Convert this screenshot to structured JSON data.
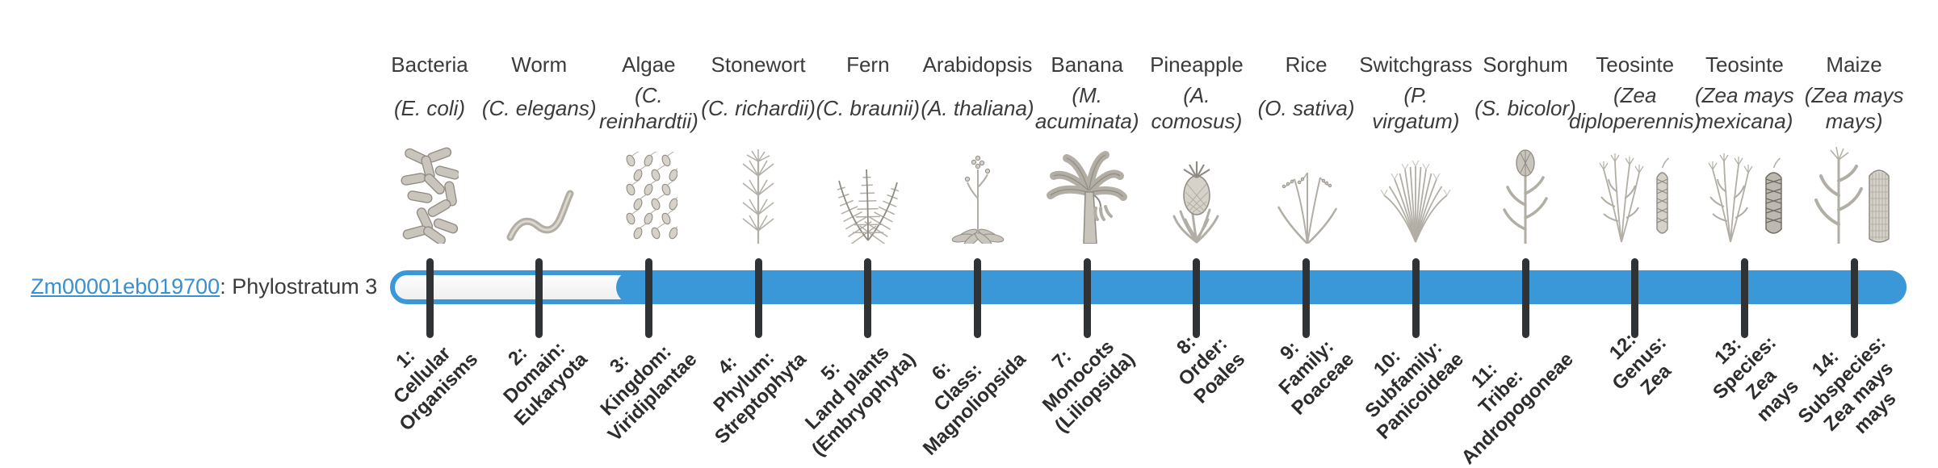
{
  "gene": {
    "id": "Zm00001eb019700",
    "suffix": ": Phylostratum 3",
    "phylostratum": 3
  },
  "colors": {
    "bar_blue": "#3B98D8",
    "link_blue": "#3A8FCE",
    "tick": "#303336",
    "heading_text": "#3B3B3B",
    "label_text": "#2D2D2D",
    "illustration": "#b2aea5"
  },
  "timeline": {
    "stratum_count": 14,
    "filled_from_stratum": 3,
    "strata": [
      {
        "num": 1,
        "organism": "Bacteria",
        "species": "(E. coli)",
        "tick_label": "1:\nCellular\nOrganisms",
        "icon": "bacteria"
      },
      {
        "num": 2,
        "organism": "Worm",
        "species": "(C. elegans)",
        "tick_label": "2:\nDomain:\nEukaryota",
        "icon": "worm"
      },
      {
        "num": 3,
        "organism": "Algae",
        "species": "(C.\nreinhardtii)",
        "tick_label": "3:\nKingdom:\nViridiplantae",
        "icon": "algae"
      },
      {
        "num": 4,
        "organism": "Stonewort",
        "species": "(C. richardii)",
        "tick_label": "4:\nPhylum:\nStreptophyta",
        "icon": "stonewort"
      },
      {
        "num": 5,
        "organism": "Fern",
        "species": "(C. braunii)",
        "tick_label": "5:\nLand plants\n(Embryophyta)",
        "icon": "fern"
      },
      {
        "num": 6,
        "organism": "Arabidopsis",
        "species": "(A. thaliana)",
        "tick_label": "6:\nClass:\nMagnoliopsida",
        "icon": "arabidopsis"
      },
      {
        "num": 7,
        "organism": "Banana",
        "species": "(M.\nacuminata)",
        "tick_label": "7:\nMonocots\n(Liliopsida)",
        "icon": "banana"
      },
      {
        "num": 8,
        "organism": "Pineapple",
        "species": "(A.\ncomosus)",
        "tick_label": "8:\nOrder:\nPoales",
        "icon": "pineapple"
      },
      {
        "num": 9,
        "organism": "Rice",
        "species": "(O. sativa)",
        "tick_label": "9:\nFamily:\nPoaceae",
        "icon": "rice"
      },
      {
        "num": 10,
        "organism": "Switchgrass",
        "species": "(P.\nvirgatum)",
        "tick_label": "10:\nSubfamily:\nPanicoideae",
        "icon": "switchgrass"
      },
      {
        "num": 11,
        "organism": "Sorghum",
        "species": "(S. bicolor)",
        "tick_label": "11:\nTribe:\nAndropogoneae",
        "icon": "sorghum"
      },
      {
        "num": 12,
        "organism": "Teosinte",
        "species": "(Zea\ndiploperennis)",
        "tick_label": "12:\nGenus:\nZea",
        "icon": "teosinte-diploperennis"
      },
      {
        "num": 13,
        "organism": "Teosinte",
        "species": "(Zea mays\nmexicana)",
        "tick_label": "13:\nSpecies:\nZea\nmays",
        "icon": "teosinte-mexicana"
      },
      {
        "num": 14,
        "organism": "Maize",
        "species": "(Zea mays\nmays)",
        "tick_label": "14:\nSubspecies:\nZea mays\nmays",
        "icon": "maize"
      }
    ]
  }
}
